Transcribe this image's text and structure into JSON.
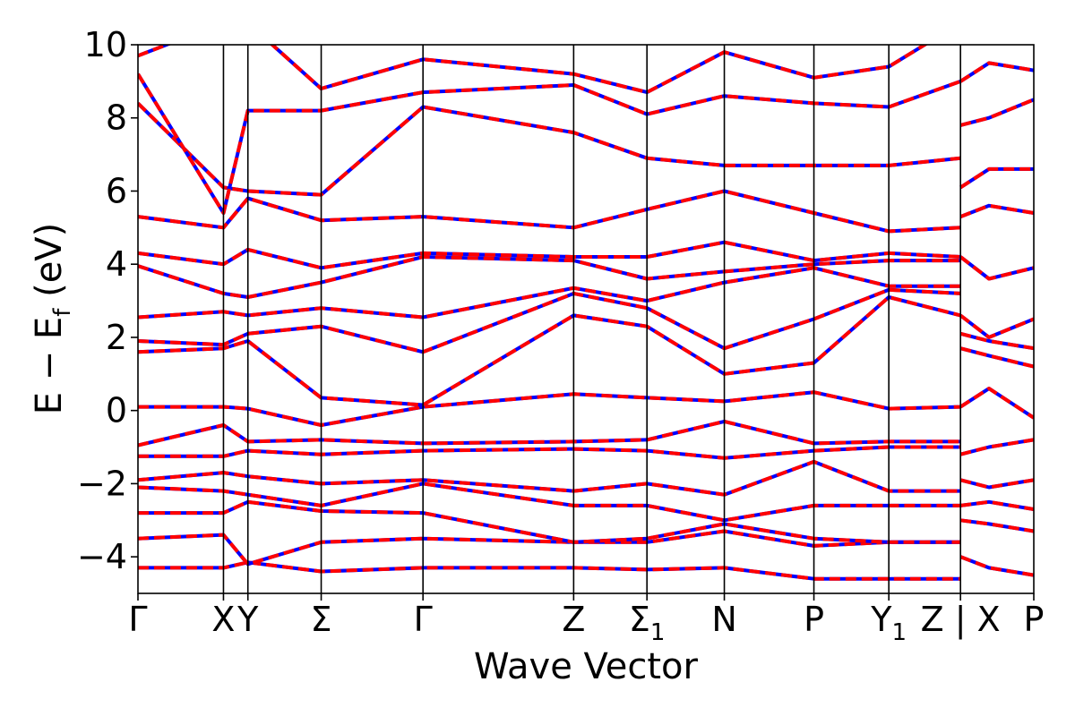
{
  "chart_data": {
    "type": "line",
    "xlabel": "Wave Vector",
    "ylabel": "E − E_f (eV)",
    "ylabel_parts": {
      "main": "E − E",
      "sub": "f",
      "unit": " (eV)"
    },
    "ylim": [
      -5,
      10
    ],
    "yticks": [
      -4,
      -2,
      0,
      2,
      4,
      6,
      8,
      10
    ],
    "ytick_labels": [
      "−4",
      "−2",
      "0",
      "2",
      "4",
      "6",
      "8",
      "10"
    ],
    "xlim": [
      0,
      11.0
    ],
    "kpoints": [
      {
        "label": "Γ",
        "x": 0.0
      },
      {
        "label": "X",
        "x": 1.05
      },
      {
        "label": "Y",
        "x": 1.35
      },
      {
        "label": "Σ",
        "x": 2.25
      },
      {
        "label": "Γ",
        "x": 3.5
      },
      {
        "label": "Z",
        "x": 5.35
      },
      {
        "label": "Σ1",
        "x": 6.25
      },
      {
        "label": "N",
        "x": 7.2
      },
      {
        "label": "P",
        "x": 8.3
      },
      {
        "label": "Y1",
        "x": 9.22
      },
      {
        "label": "Z",
        "x": 10.1
      },
      {
        "label": "X",
        "x": 10.45
      },
      {
        "label": "P",
        "x": 11.0
      }
    ],
    "xtick_texts": [
      {
        "text": "Γ",
        "x": 0.0
      },
      {
        "text": "X",
        "x": 1.05
      },
      {
        "text": "Y",
        "x": 1.35
      },
      {
        "text": "Σ",
        "x": 2.25
      },
      {
        "text": "Γ",
        "x": 3.5
      },
      {
        "text": "Z",
        "x": 5.35
      },
      {
        "text": "Σ",
        "sub": "1",
        "x": 6.25
      },
      {
        "text": "N",
        "x": 7.2
      },
      {
        "text": "P",
        "x": 8.3
      },
      {
        "text": "Y",
        "sub": "1",
        "x": 9.22
      },
      {
        "text": "Z | X",
        "x": 10.1
      },
      {
        "text": "P",
        "x": 11.0
      }
    ],
    "segment_breaks": [
      10.1
    ],
    "series_styles": [
      {
        "color": "#0000ff",
        "style": "solid"
      },
      {
        "color": "#ff0000",
        "style": "dashed"
      }
    ],
    "band_values": [
      {
        "x": [
          0,
          1.05,
          1.35,
          2.25,
          3.5,
          5.35,
          6.25,
          7.2,
          8.3,
          9.22,
          10.1
        ],
        "y": [
          -4.3,
          -4.3,
          -4.15,
          -4.4,
          -4.3,
          -4.3,
          -4.35,
          -4.3,
          -4.6,
          -4.6,
          -4.6
        ]
      },
      {
        "x": [
          0,
          1.05,
          1.35,
          2.25,
          3.5,
          5.35,
          6.25,
          7.2,
          8.3,
          9.22,
          10.1
        ],
        "y": [
          -3.5,
          -3.4,
          -4.2,
          -3.6,
          -3.5,
          -3.6,
          -3.6,
          -3.3,
          -3.7,
          -3.6,
          -3.6
        ]
      },
      {
        "x": [
          0,
          1.05,
          1.35,
          2.25,
          3.5,
          5.35,
          6.25,
          7.2,
          8.3,
          9.22,
          10.1
        ],
        "y": [
          -2.8,
          -2.8,
          -2.5,
          -2.75,
          -2.8,
          -3.6,
          -3.5,
          -3.1,
          -3.5,
          -3.6,
          -3.6
        ]
      },
      {
        "x": [
          0,
          1.05,
          1.35,
          2.25,
          3.5,
          5.35,
          6.25,
          7.2,
          8.3,
          9.22,
          10.1
        ],
        "y": [
          -2.1,
          -2.2,
          -2.3,
          -2.6,
          -2.0,
          -2.6,
          -2.6,
          -3.0,
          -2.6,
          -2.6,
          -2.6
        ]
      },
      {
        "x": [
          0,
          1.05,
          1.35,
          2.25,
          3.5,
          5.35,
          6.25,
          7.2,
          8.3,
          9.22,
          10.1
        ],
        "y": [
          -1.9,
          -1.7,
          -1.8,
          -2.0,
          -1.9,
          -2.2,
          -2.0,
          -2.3,
          -1.4,
          -2.2,
          -2.2
        ]
      },
      {
        "x": [
          0,
          1.05,
          1.35,
          2.25,
          3.5,
          5.35,
          6.25,
          7.2,
          8.3,
          9.22,
          10.1
        ],
        "y": [
          -1.25,
          -1.25,
          -1.1,
          -1.2,
          -1.1,
          -1.05,
          -1.1,
          -1.3,
          -1.1,
          -1.0,
          -1.0
        ]
      },
      {
        "x": [
          0,
          1.05,
          1.35,
          2.25,
          3.5,
          5.35,
          6.25,
          7.2,
          8.3,
          9.22,
          10.1
        ],
        "y": [
          -0.95,
          -0.4,
          -0.85,
          -0.8,
          -0.9,
          -0.85,
          -0.8,
          -0.3,
          -0.9,
          -0.85,
          -0.85
        ]
      },
      {
        "x": [
          0,
          1.05,
          1.35,
          2.25,
          3.5,
          5.35,
          6.25,
          7.2,
          8.3,
          9.22,
          10.1
        ],
        "y": [
          0.1,
          0.1,
          0.05,
          -0.4,
          0.1,
          0.45,
          0.35,
          0.25,
          0.5,
          0.05,
          0.1
        ]
      },
      {
        "x": [
          0,
          1.05,
          1.35,
          2.25,
          3.5,
          5.35,
          6.25,
          7.2,
          8.3,
          9.22,
          10.1
        ],
        "y": [
          1.6,
          1.7,
          1.9,
          0.35,
          0.15,
          2.6,
          2.3,
          1.0,
          1.3,
          3.1,
          2.6
        ]
      },
      {
        "x": [
          0,
          1.05,
          1.35,
          2.25,
          3.5,
          5.35,
          6.25,
          7.2,
          8.3,
          9.22,
          10.1
        ],
        "y": [
          1.9,
          1.8,
          2.1,
          2.3,
          1.6,
          3.2,
          2.8,
          1.7,
          2.5,
          3.3,
          3.2
        ]
      },
      {
        "x": [
          0,
          1.05,
          1.35,
          2.25,
          3.5,
          5.35,
          6.25,
          7.2,
          8.3,
          9.22,
          10.1
        ],
        "y": [
          2.55,
          2.7,
          2.6,
          2.8,
          2.55,
          3.35,
          3.0,
          3.5,
          3.9,
          3.4,
          3.4
        ]
      },
      {
        "x": [
          0,
          1.05,
          1.35,
          2.25,
          3.5,
          5.35,
          6.25,
          7.2,
          8.3,
          9.22,
          10.1
        ],
        "y": [
          3.95,
          3.2,
          3.1,
          3.5,
          4.2,
          4.1,
          3.6,
          3.8,
          4.0,
          4.1,
          4.1
        ]
      },
      {
        "x": [
          0,
          1.05,
          1.35,
          2.25,
          3.5,
          5.35,
          6.25,
          7.2,
          8.3,
          9.22,
          10.1
        ],
        "y": [
          4.3,
          4.0,
          4.4,
          3.9,
          4.3,
          4.2,
          4.2,
          4.6,
          4.1,
          4.3,
          4.2
        ]
      },
      {
        "x": [
          0,
          1.05,
          1.35,
          2.25,
          3.5,
          5.35,
          6.25,
          7.2,
          8.3,
          9.22,
          10.1
        ],
        "y": [
          5.3,
          5.0,
          5.8,
          5.2,
          5.3,
          5.0,
          5.5,
          6.0,
          5.4,
          4.9,
          5.0
        ]
      },
      {
        "x": [
          0,
          1.05,
          1.35,
          2.25,
          3.5,
          5.35,
          6.25,
          7.2,
          8.3,
          9.22,
          10.1
        ],
        "y": [
          8.4,
          6.1,
          6.0,
          5.9,
          8.3,
          7.6,
          6.9,
          6.7,
          6.7,
          6.7,
          6.9
        ]
      },
      {
        "x": [
          0,
          1.05,
          1.35,
          2.25,
          3.5,
          5.35,
          6.25,
          7.2,
          8.3,
          9.22,
          10.1
        ],
        "y": [
          9.2,
          5.4,
          8.2,
          8.2,
          8.7,
          8.9,
          8.1,
          8.6,
          8.4,
          8.3,
          9.0
        ]
      },
      {
        "x": [
          0,
          1.05,
          1.35,
          2.25,
          3.5,
          5.35,
          6.25,
          7.2,
          8.3,
          9.22,
          10.1
        ],
        "y": [
          9.7,
          10.6,
          10.6,
          8.8,
          9.6,
          9.2,
          8.7,
          9.8,
          9.1,
          9.4,
          10.6
        ]
      },
      {
        "x": [
          10.1,
          10.45,
          11.0
        ],
        "y": [
          -4.0,
          -4.3,
          -4.5
        ]
      },
      {
        "x": [
          10.1,
          10.45,
          11.0
        ],
        "y": [
          -3.0,
          -3.1,
          -3.3
        ]
      },
      {
        "x": [
          10.1,
          10.45,
          11.0
        ],
        "y": [
          -2.6,
          -2.5,
          -2.7
        ]
      },
      {
        "x": [
          10.1,
          10.45,
          11.0
        ],
        "y": [
          -1.9,
          -2.1,
          -1.9
        ]
      },
      {
        "x": [
          10.1,
          10.45,
          11.0
        ],
        "y": [
          -1.2,
          -1.0,
          -0.8
        ]
      },
      {
        "x": [
          10.1,
          10.45,
          11.0
        ],
        "y": [
          0.1,
          0.6,
          -0.2
        ]
      },
      {
        "x": [
          10.1,
          10.45,
          11.0
        ],
        "y": [
          1.7,
          1.5,
          1.2
        ]
      },
      {
        "x": [
          10.1,
          10.45,
          11.0
        ],
        "y": [
          2.1,
          1.9,
          1.7
        ]
      },
      {
        "x": [
          10.1,
          10.45,
          11.0
        ],
        "y": [
          2.6,
          2.0,
          2.5
        ]
      },
      {
        "x": [
          10.1,
          10.45,
          11.0
        ],
        "y": [
          4.2,
          3.6,
          3.9
        ]
      },
      {
        "x": [
          10.1,
          10.45,
          11.0
        ],
        "y": [
          5.3,
          5.6,
          5.4
        ]
      },
      {
        "x": [
          10.1,
          10.45,
          11.0
        ],
        "y": [
          6.1,
          6.6,
          6.6
        ]
      },
      {
        "x": [
          10.1,
          10.45,
          11.0
        ],
        "y": [
          7.8,
          8.0,
          8.5
        ]
      },
      {
        "x": [
          10.1,
          10.45,
          11.0
        ],
        "y": [
          9.0,
          9.5,
          9.3
        ]
      }
    ]
  }
}
